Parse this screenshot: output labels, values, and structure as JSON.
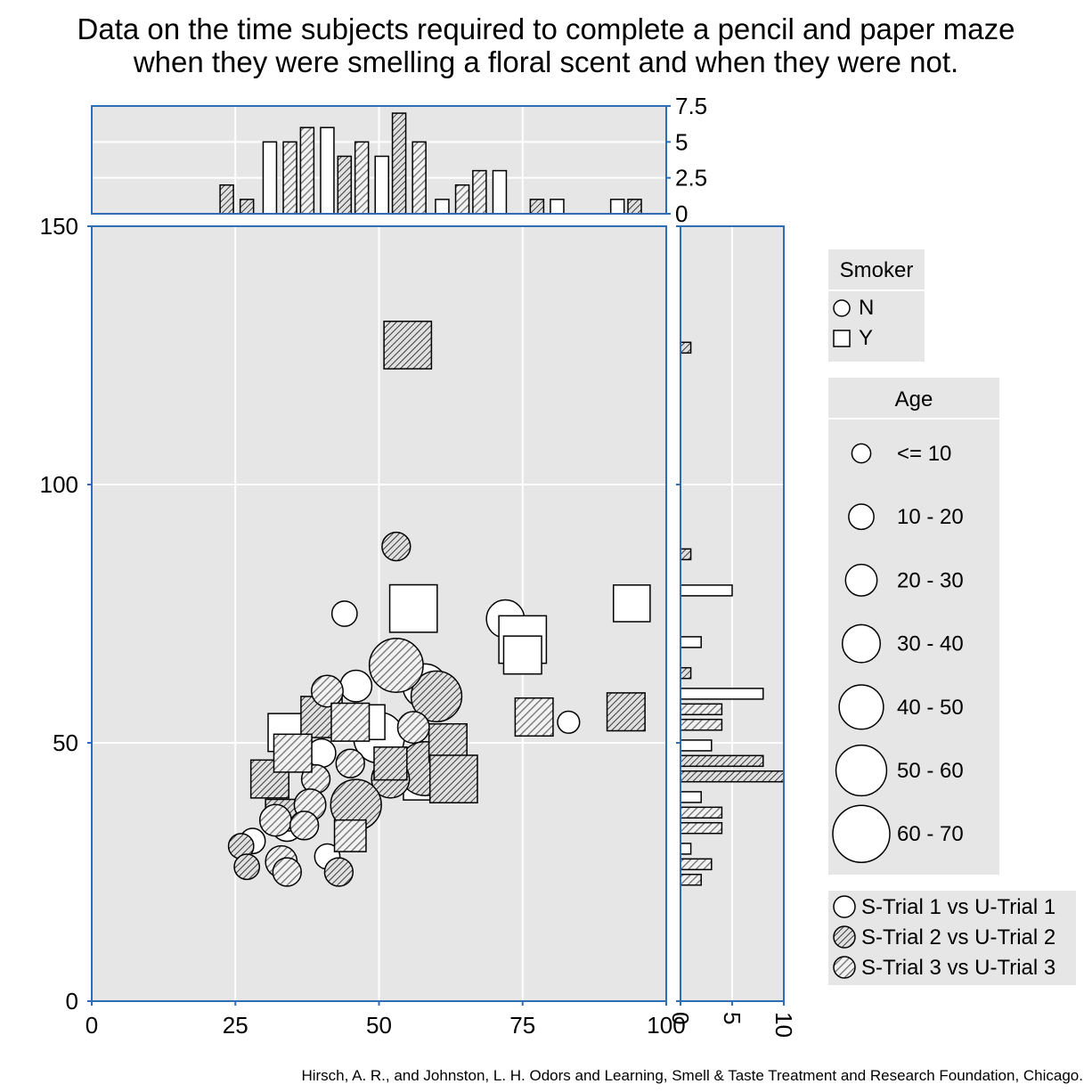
{
  "chart_data": {
    "type": "scatter",
    "title": "Data on the time subjects required to complete a pencil and paper maze",
    "subtitle": "when they were smelling a floral scent and when they were not.",
    "caption": "Hirsch, A. R., and Johnston, L. H. Odors and Learning, Smell & Taste Treatment and Research Foundation, Chicago.",
    "xlabel": "",
    "ylabel": "",
    "xlim": [
      0,
      100
    ],
    "ylim": [
      0,
      150
    ],
    "x_ticks": [
      "0",
      "25",
      "50",
      "75",
      "100"
    ],
    "y_ticks": [
      "0",
      "50",
      "100",
      "150"
    ],
    "grid": true,
    "background": "#e6e6e6",
    "frame_color": "#2f6eb5",
    "legends": {
      "smoker": {
        "title": "Smoker",
        "entries": [
          {
            "label": "N",
            "shape": "circle"
          },
          {
            "label": "Y",
            "shape": "square"
          }
        ]
      },
      "age": {
        "title": "Age",
        "entries": [
          {
            "label": "<= 10",
            "size": 10
          },
          {
            "label": "10 - 20",
            "size": 20
          },
          {
            "label": "20 - 30",
            "size": 30
          },
          {
            "label": "30 - 40",
            "size": 40
          },
          {
            "label": "40 - 50",
            "size": 50
          },
          {
            "label": "50 - 60",
            "size": 60
          },
          {
            "label": "60 - 70",
            "size": 70
          }
        ]
      },
      "trial": {
        "entries": [
          {
            "label": "S-Trial 1 vs U-Trial 1",
            "fill": "white"
          },
          {
            "label": "S-Trial 2 vs U-Trial 2",
            "fill": "dense-hatch"
          },
          {
            "label": "S-Trial 3 vs U-Trial 3",
            "fill": "hatch"
          }
        ]
      }
    },
    "series": [
      {
        "fill": "white",
        "points": [
          {
            "x": 44,
            "y": 75,
            "age": 20,
            "smoker": "N"
          },
          {
            "x": 72,
            "y": 74,
            "age": 40,
            "smoker": "N"
          },
          {
            "x": 83,
            "y": 54,
            "age": 15,
            "smoker": "N"
          },
          {
            "x": 46,
            "y": 61,
            "age": 30,
            "smoker": "N"
          },
          {
            "x": 58,
            "y": 61,
            "age": 50,
            "smoker": "N"
          },
          {
            "x": 50,
            "y": 51,
            "age": 60,
            "smoker": "N"
          },
          {
            "x": 40,
            "y": 48,
            "age": 25,
            "smoker": "N"
          },
          {
            "x": 34,
            "y": 34,
            "age": 30,
            "smoker": "N"
          },
          {
            "x": 41,
            "y": 28,
            "age": 20,
            "smoker": "N"
          },
          {
            "x": 28,
            "y": 31,
            "age": 20,
            "smoker": "N"
          },
          {
            "x": 56,
            "y": 76,
            "age": 55,
            "smoker": "Y"
          },
          {
            "x": 94,
            "y": 77,
            "age": 38,
            "smoker": "Y"
          },
          {
            "x": 75,
            "y": 70,
            "age": 55,
            "smoker": "Y"
          },
          {
            "x": 75,
            "y": 67,
            "age": 40,
            "smoker": "Y"
          },
          {
            "x": 34,
            "y": 52,
            "age": 40,
            "smoker": "Y"
          },
          {
            "x": 48,
            "y": 54,
            "age": 35,
            "smoker": "Y"
          },
          {
            "x": 57,
            "y": 42,
            "age": 30,
            "smoker": "Y"
          }
        ]
      },
      {
        "fill": "dense-hatch",
        "points": [
          {
            "x": 53,
            "y": 88,
            "age": 25,
            "smoker": "N"
          },
          {
            "x": 60,
            "y": 59,
            "age": 60,
            "smoker": "N"
          },
          {
            "x": 58,
            "y": 45,
            "age": 65,
            "smoker": "N"
          },
          {
            "x": 52,
            "y": 43,
            "age": 40,
            "smoker": "N"
          },
          {
            "x": 46,
            "y": 38,
            "age": 60,
            "smoker": "N"
          },
          {
            "x": 43,
            "y": 25,
            "age": 25,
            "smoker": "N"
          },
          {
            "x": 26,
            "y": 30,
            "age": 20,
            "smoker": "N"
          },
          {
            "x": 27,
            "y": 26,
            "age": 20,
            "smoker": "N"
          },
          {
            "x": 55,
            "y": 127,
            "age": 55,
            "smoker": "Y"
          },
          {
            "x": 93,
            "y": 56,
            "age": 40,
            "smoker": "Y"
          },
          {
            "x": 62,
            "y": 50,
            "age": 40,
            "smoker": "Y"
          },
          {
            "x": 63,
            "y": 43,
            "age": 55,
            "smoker": "Y"
          },
          {
            "x": 52,
            "y": 46,
            "age": 32,
            "smoker": "Y"
          },
          {
            "x": 40,
            "y": 55,
            "age": 45,
            "smoker": "Y"
          },
          {
            "x": 31,
            "y": 43,
            "age": 40,
            "smoker": "Y"
          },
          {
            "x": 33,
            "y": 36,
            "age": 30,
            "smoker": "Y"
          }
        ]
      },
      {
        "fill": "hatch",
        "points": [
          {
            "x": 53,
            "y": 65,
            "age": 65,
            "smoker": "N"
          },
          {
            "x": 41,
            "y": 60,
            "age": 30,
            "smoker": "N"
          },
          {
            "x": 56,
            "y": 53,
            "age": 30,
            "smoker": "N"
          },
          {
            "x": 45,
            "y": 46,
            "age": 25,
            "smoker": "N"
          },
          {
            "x": 39,
            "y": 43,
            "age": 25,
            "smoker": "N"
          },
          {
            "x": 38,
            "y": 38,
            "age": 30,
            "smoker": "N"
          },
          {
            "x": 32,
            "y": 35,
            "age": 30,
            "smoker": "N"
          },
          {
            "x": 37,
            "y": 34,
            "age": 25,
            "smoker": "N"
          },
          {
            "x": 33,
            "y": 27,
            "age": 30,
            "smoker": "N"
          },
          {
            "x": 34,
            "y": 25,
            "age": 25,
            "smoker": "N"
          },
          {
            "x": 77,
            "y": 55,
            "age": 40,
            "smoker": "Y"
          },
          {
            "x": 45,
            "y": 54,
            "age": 40,
            "smoker": "Y"
          },
          {
            "x": 35,
            "y": 48,
            "age": 40,
            "smoker": "Y"
          },
          {
            "x": 45,
            "y": 32,
            "age": 30,
            "smoker": "Y"
          }
        ]
      }
    ],
    "top_histogram": {
      "y_ticks": [
        "0",
        "2.5",
        "5",
        "7.5"
      ],
      "ylim": [
        0,
        7.5
      ],
      "bins": [
        {
          "x": 23.5,
          "count": 2,
          "fill": "dense-hatch"
        },
        {
          "x": 27,
          "count": 1,
          "fill": "dense-hatch"
        },
        {
          "x": 31,
          "count": 5,
          "fill": "white"
        },
        {
          "x": 34.5,
          "count": 5,
          "fill": "hatch"
        },
        {
          "x": 37.5,
          "count": 6,
          "fill": "hatch"
        },
        {
          "x": 41,
          "count": 6,
          "fill": "white"
        },
        {
          "x": 44,
          "count": 4,
          "fill": "dense-hatch"
        },
        {
          "x": 47,
          "count": 5,
          "fill": "hatch"
        },
        {
          "x": 50.5,
          "count": 4,
          "fill": "white"
        },
        {
          "x": 53.5,
          "count": 7,
          "fill": "dense-hatch"
        },
        {
          "x": 57,
          "count": 5,
          "fill": "hatch"
        },
        {
          "x": 61,
          "count": 1,
          "fill": "white"
        },
        {
          "x": 64.5,
          "count": 2,
          "fill": "hatch"
        },
        {
          "x": 67.5,
          "count": 3,
          "fill": "hatch"
        },
        {
          "x": 71,
          "count": 3,
          "fill": "white"
        },
        {
          "x": 77.5,
          "count": 1,
          "fill": "dense-hatch"
        },
        {
          "x": 81,
          "count": 1,
          "fill": "white"
        },
        {
          "x": 91.5,
          "count": 1,
          "fill": "white"
        },
        {
          "x": 94.5,
          "count": 1,
          "fill": "dense-hatch"
        }
      ]
    },
    "right_histogram": {
      "x_ticks": [
        "0",
        "5",
        "10"
      ],
      "xlim": [
        0,
        10
      ],
      "bins": [
        {
          "y": 126.5,
          "count": 1,
          "fill": "dense-hatch"
        },
        {
          "y": 86.5,
          "count": 1,
          "fill": "dense-hatch"
        },
        {
          "y": 79.5,
          "count": 5,
          "fill": "white"
        },
        {
          "y": 69.5,
          "count": 2,
          "fill": "white"
        },
        {
          "y": 63.5,
          "count": 1,
          "fill": "dense-hatch"
        },
        {
          "y": 59.5,
          "count": 8,
          "fill": "white"
        },
        {
          "y": 56.5,
          "count": 4,
          "fill": "hatch"
        },
        {
          "y": 53.5,
          "count": 4,
          "fill": "hatch"
        },
        {
          "y": 49.5,
          "count": 3,
          "fill": "white"
        },
        {
          "y": 46.5,
          "count": 8,
          "fill": "dense-hatch"
        },
        {
          "y": 43.5,
          "count": 10,
          "fill": "dense-hatch"
        },
        {
          "y": 39.5,
          "count": 2,
          "fill": "white"
        },
        {
          "y": 36.5,
          "count": 4,
          "fill": "hatch"
        },
        {
          "y": 33.5,
          "count": 4,
          "fill": "hatch"
        },
        {
          "y": 29.5,
          "count": 1,
          "fill": "white"
        },
        {
          "y": 26.5,
          "count": 3,
          "fill": "hatch"
        },
        {
          "y": 23.5,
          "count": 2,
          "fill": "hatch"
        }
      ]
    }
  }
}
